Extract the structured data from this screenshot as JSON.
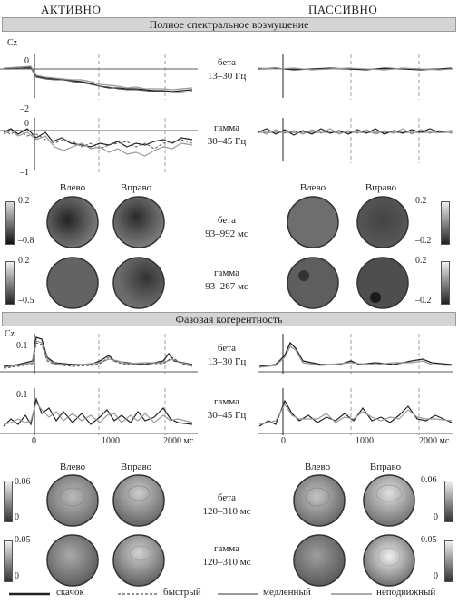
{
  "headers": {
    "active": "АКТИВНО",
    "passive": "ПАССИВНО"
  },
  "sections": {
    "psd": "Полное спектральное возмущение",
    "coh": "Фазовая когерентность"
  },
  "electrode": "Cz",
  "bands": {
    "beta_label": "бета",
    "beta_range": "13–30 Гц",
    "gamma_label": "гамма",
    "gamma_range": "30–45 Гц"
  },
  "windows": {
    "psd_beta": "93–992 мс",
    "psd_gamma": "93–267 мс",
    "coh_beta": "120–310 мс",
    "coh_gamma": "120–310 мс"
  },
  "topo_labels": {
    "left": "Влево",
    "right": "Вправо"
  },
  "psd_axes": {
    "beta_top": "0",
    "beta_bottom": "–2",
    "gamma_top": "0",
    "gamma_bottom": "–1"
  },
  "coh_axes": {
    "beta_top": "0.1",
    "gamma_top": "0.1"
  },
  "x_ticks": {
    "t0": "0",
    "t1": "1000",
    "t2": "2000 мс"
  },
  "colorbars": {
    "psd_beta_active": {
      "max": "0.2",
      "min": "–0.8"
    },
    "psd_beta_passive": {
      "max": "0.2",
      "min": "–0.2"
    },
    "psd_gamma_active": {
      "max": "0.2",
      "min": "–0.5"
    },
    "psd_gamma_passive": {
      "max": "0.2",
      "min": "–0.2"
    },
    "coh_beta_active": {
      "max": "0.06",
      "min": "0"
    },
    "coh_beta_passive": {
      "max": "0.06",
      "min": "0"
    },
    "coh_gamma_active": {
      "max": "0.05",
      "min": "0"
    },
    "coh_gamma_passive": {
      "max": "0.05",
      "min": "0"
    }
  },
  "legend": {
    "jump": "скачок",
    "fast": "быстрый",
    "slow": "медленный",
    "static": "неподвижный"
  },
  "colors": {
    "dark": "#222222",
    "mid": "#555555",
    "light": "#999999",
    "band_bg": "#d4d4d4"
  }
}
